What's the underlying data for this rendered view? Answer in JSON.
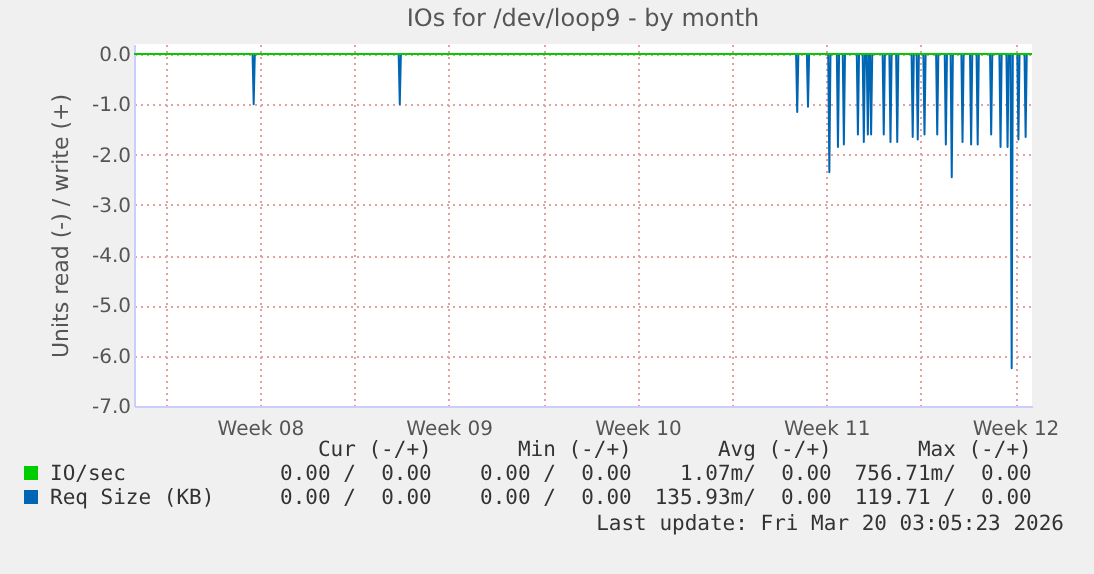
{
  "chart_data": {
    "type": "line",
    "title": "IOs for /dev/loop9 - by month",
    "ylabel": "Units read (-) / write (+)",
    "xlim": [
      "2026-02-14T20:00",
      "2026-03-20T03:05"
    ],
    "xticks": [
      {
        "value": "2026-02-16T00:00",
        "label": null
      },
      {
        "value": "2026-02-19T12:00",
        "label": "Week 08"
      },
      {
        "value": "2026-02-23T00:00",
        "label": null
      },
      {
        "value": "2026-02-26T12:00",
        "label": "Week 09"
      },
      {
        "value": "2026-03-02T00:00",
        "label": null
      },
      {
        "value": "2026-03-05T12:00",
        "label": "Week 10"
      },
      {
        "value": "2026-03-09T00:00",
        "label": null
      },
      {
        "value": "2026-03-12T12:00",
        "label": "Week 11"
      },
      {
        "value": "2026-03-16T00:00",
        "label": null
      },
      {
        "value": "2026-03-19T12:00",
        "label": "Week 12"
      }
    ],
    "ylim": [
      -7,
      0.2
    ],
    "yticks": [
      {
        "value": 0,
        "label": "0.0"
      },
      {
        "value": -1,
        "label": "-1.0"
      },
      {
        "value": -2,
        "label": "-2.0"
      },
      {
        "value": -3,
        "label": "-3.0"
      },
      {
        "value": -4,
        "label": "-4.0"
      },
      {
        "value": -5,
        "label": "-5.0"
      },
      {
        "value": -6,
        "label": "-6.0"
      },
      {
        "value": -7,
        "label": "-7.0"
      }
    ],
    "grid": true,
    "legend": "bottom",
    "series": [
      {
        "name": "IO/sec",
        "color": "#00cc00",
        "x": [
          "2026-02-14T20:00",
          "2026-03-20T03:05"
        ],
        "values": [
          0,
          0
        ]
      },
      {
        "name": "Req Size (KB)",
        "color": "#0066b3",
        "x": [
          "2026-02-14T20:00",
          "2026-02-19T05:30",
          "2026-02-19T06:30",
          "2026-02-19T07:30",
          "2026-02-24T15:30",
          "2026-02-24T16:30",
          "2026-02-24T17:30",
          "2026-03-11T09:10",
          "2026-03-11T10:10",
          "2026-03-11T11:10",
          "2026-03-11T18:45",
          "2026-03-11T19:45",
          "2026-03-11T20:45",
          "2026-03-12T13:45",
          "2026-03-12T14:45",
          "2026-03-12T15:45",
          "2026-03-12T21:25",
          "2026-03-12T22:25",
          "2026-03-12T23:25",
          "2026-03-13T02:40",
          "2026-03-13T03:40",
          "2026-03-13T04:40",
          "2026-03-13T15:10",
          "2026-03-13T16:10",
          "2026-03-13T17:10",
          "2026-03-13T20:25",
          "2026-03-13T21:25",
          "2026-03-13T22:25",
          "2026-03-14T00:00",
          "2026-03-14T01:00",
          "2026-03-14T02:00",
          "2026-03-14T02:55",
          "2026-03-14T03:55",
          "2026-03-14T04:55",
          "2026-03-14T14:10",
          "2026-03-14T15:10",
          "2026-03-14T16:10",
          "2026-03-14T20:10",
          "2026-03-14T21:10",
          "2026-03-14T22:10",
          "2026-03-15T02:10",
          "2026-03-15T03:10",
          "2026-03-15T04:10",
          "2026-03-15T15:55",
          "2026-03-15T16:55",
          "2026-03-15T17:55",
          "2026-03-15T20:25",
          "2026-03-15T21:25",
          "2026-03-15T22:25",
          "2026-03-16T02:25",
          "2026-03-16T03:25",
          "2026-03-16T04:25",
          "2026-03-16T13:45",
          "2026-03-16T14:45",
          "2026-03-16T15:45",
          "2026-03-16T21:25",
          "2026-03-16T22:25",
          "2026-03-16T23:25",
          "2026-03-17T02:40",
          "2026-03-17T03:40",
          "2026-03-17T04:40",
          "2026-03-17T12:15",
          "2026-03-17T13:15",
          "2026-03-17T14:15",
          "2026-03-17T19:55",
          "2026-03-17T20:55",
          "2026-03-17T21:55",
          "2026-03-18T01:45",
          "2026-03-18T02:45",
          "2026-03-18T03:45",
          "2026-03-18T13:45",
          "2026-03-18T14:45",
          "2026-03-18T15:45",
          "2026-03-18T22:05",
          "2026-03-18T23:05",
          "2026-03-19T00:05",
          "2026-03-19T04:20",
          "2026-03-19T05:20",
          "2026-03-19T06:20",
          "2026-03-19T08:00",
          "2026-03-19T09:00",
          "2026-03-19T10:00",
          "2026-03-19T14:00",
          "2026-03-19T15:00",
          "2026-03-19T16:00",
          "2026-03-19T20:25",
          "2026-03-19T21:25",
          "2026-03-19T22:25",
          "2026-03-20T03:05"
        ],
        "values": [
          0,
          0,
          -1.0,
          0,
          0,
          -1.0,
          0,
          0,
          -1.15,
          0,
          0,
          -1.05,
          0,
          0,
          -2.35,
          0,
          0,
          -1.85,
          0,
          0,
          -1.8,
          0,
          0,
          -1.6,
          0,
          0,
          -1.75,
          0,
          0,
          -1.6,
          0,
          0,
          -1.6,
          0,
          0,
          -1.6,
          0,
          0,
          -1.75,
          0,
          0,
          -1.75,
          0,
          0,
          -1.65,
          0,
          0,
          -1.7,
          0,
          0,
          -1.6,
          0,
          0,
          -1.6,
          0,
          0,
          -1.8,
          0,
          0,
          -2.45,
          0,
          0,
          -1.75,
          0,
          0,
          -1.8,
          0,
          0,
          -1.8,
          0,
          0,
          -1.6,
          0,
          0,
          -1.85,
          0,
          0,
          -1.85,
          0,
          0,
          -6.25,
          0,
          0,
          -1.7,
          0,
          0,
          -1.65,
          0,
          0
        ]
      }
    ],
    "annotations": [
      "Cur (-/+)",
      "Min (-/+)",
      "Avg (-/+)",
      "Max (-/+)",
      "0.00 /  0.00",
      "0.00 /  0.00",
      "1.07m/  0.00",
      "756.71m/  0.00",
      "0.00 /  0.00",
      "0.00 /  0.00",
      "135.93m/  0.00",
      "119.71 /  0.00",
      "Last update: Fri Mar 20 03:05:23 2026"
    ]
  }
}
